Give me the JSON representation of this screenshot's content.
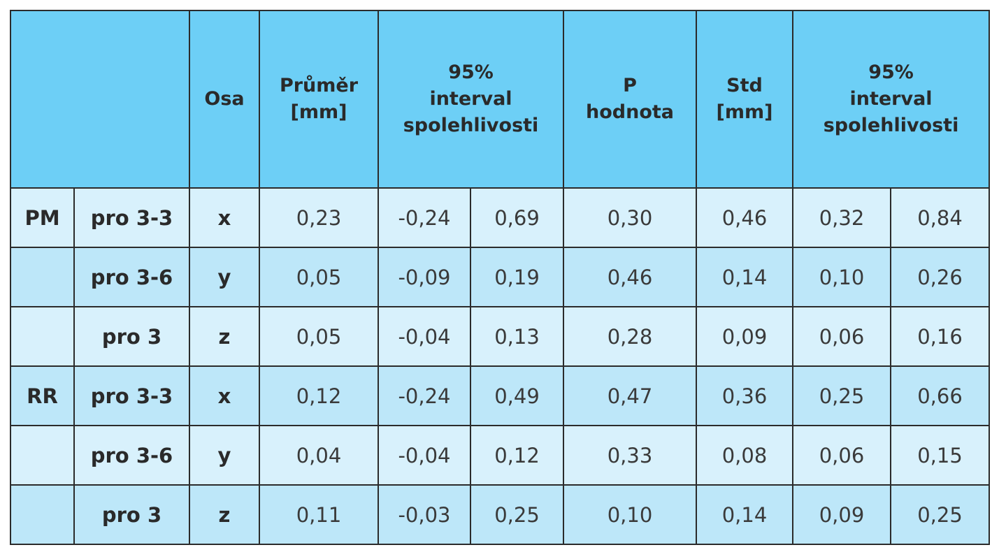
{
  "table": {
    "header": [
      {
        "lines": [
          "Osa"
        ]
      },
      {
        "lines": [
          "Průměr",
          "[mm]"
        ]
      },
      {
        "lines": [
          "95%",
          "interval",
          "spolehlivosti"
        ],
        "span": 2
      },
      {
        "lines": [
          "P",
          "hodnota"
        ]
      },
      {
        "lines": [
          "Std",
          "[mm]"
        ]
      },
      {
        "lines": [
          "95%",
          "interval",
          "spolehlivosti"
        ],
        "span": 2
      }
    ],
    "groups": [
      {
        "label": "PM",
        "rows": [
          {
            "name": "pro 3-3",
            "axis": "x",
            "values": [
              "0,23",
              "-0,24",
              "0,69",
              "0,30",
              "0,46",
              "0,32",
              "0,84"
            ]
          },
          {
            "name": "pro 3-6",
            "axis": "y",
            "values": [
              "0,05",
              "-0,09",
              "0,19",
              "0,46",
              "0,14",
              "0,10",
              "0,26"
            ]
          },
          {
            "name": "pro 3",
            "axis": "z",
            "values": [
              "0,05",
              "-0,04",
              "0,13",
              "0,28",
              "0,09",
              "0,06",
              "0,16"
            ]
          }
        ]
      },
      {
        "label": "RR",
        "rows": [
          {
            "name": "pro 3-3",
            "axis": "x",
            "values": [
              "0,12",
              "-0,24",
              "0,49",
              "0,47",
              "0,36",
              "0,25",
              "0,66"
            ]
          },
          {
            "name": "pro 3-6",
            "axis": "y",
            "values": [
              "0,04",
              "-0,04",
              "0,12",
              "0,33",
              "0,08",
              "0,06",
              "0,15"
            ]
          },
          {
            "name": "pro 3",
            "axis": "z",
            "values": [
              "0,11",
              "-0,03",
              "0,25",
              "0,10",
              "0,14",
              "0,09",
              "0,25"
            ]
          }
        ]
      }
    ]
  }
}
